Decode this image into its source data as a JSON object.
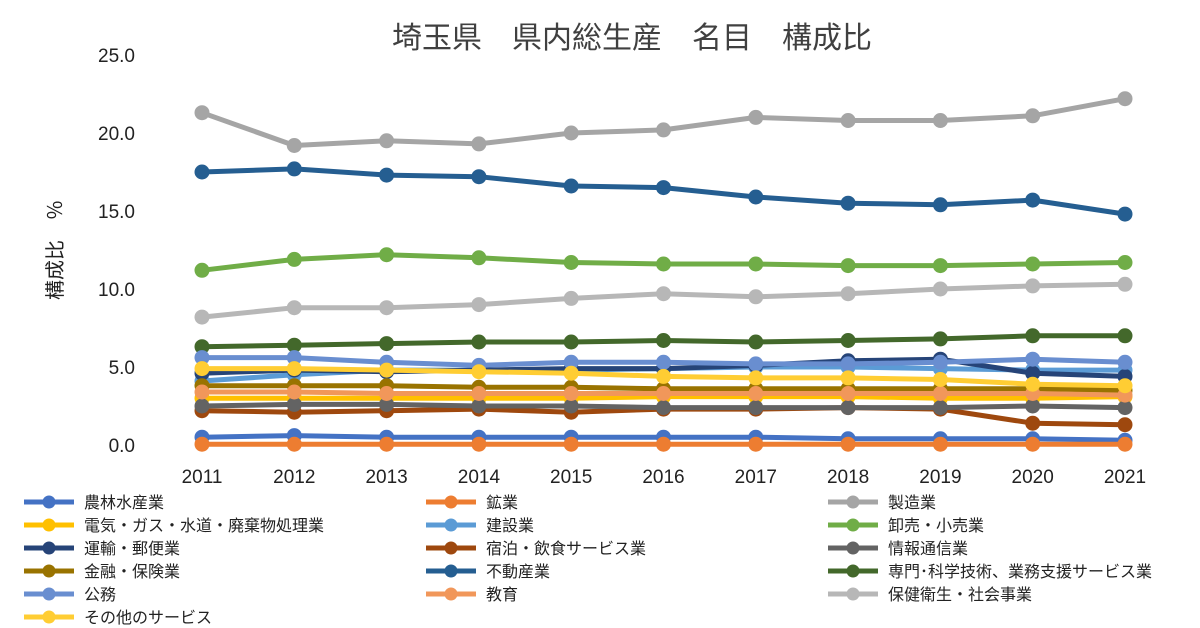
{
  "chart_data": {
    "type": "line",
    "title": "埼玉県　県内総生産　名目　構成比",
    "xlabel": "",
    "ylabel": "構成比　％",
    "ylim": [
      0,
      25
    ],
    "yticks": [
      "0.0",
      "5.0",
      "10.0",
      "15.0",
      "20.0",
      "25.0"
    ],
    "grid": false,
    "legend_position": "bottom",
    "categories": [
      "2011",
      "2012",
      "2013",
      "2014",
      "2015",
      "2016",
      "2017",
      "2018",
      "2019",
      "2020",
      "2021"
    ],
    "series": [
      {
        "name": "農林水産業",
        "color": "#4472C4",
        "values": [
          0.5,
          0.6,
          0.5,
          0.5,
          0.5,
          0.5,
          0.5,
          0.4,
          0.4,
          0.4,
          0.3
        ]
      },
      {
        "name": "鉱業",
        "color": "#ED7D31",
        "values": [
          0.05,
          0.05,
          0.05,
          0.05,
          0.05,
          0.05,
          0.05,
          0.05,
          0.05,
          0.05,
          0.05
        ]
      },
      {
        "name": "製造業",
        "color": "#A5A5A5",
        "values": [
          21.3,
          19.2,
          19.5,
          19.3,
          20.0,
          20.2,
          21.0,
          20.8,
          20.8,
          21.1,
          22.2
        ]
      },
      {
        "name": "電気・ガス・水道・廃棄物処理業",
        "color": "#FFC000",
        "values": [
          3.0,
          3.0,
          3.0,
          3.0,
          3.0,
          3.1,
          3.1,
          3.1,
          3.0,
          3.0,
          3.1
        ]
      },
      {
        "name": "建設業",
        "color": "#5B9BD5",
        "values": [
          4.1,
          4.5,
          4.8,
          4.8,
          4.8,
          4.9,
          5.0,
          5.0,
          4.9,
          4.8,
          4.8
        ]
      },
      {
        "name": "卸売・小売業",
        "color": "#70AD47",
        "values": [
          11.2,
          11.9,
          12.2,
          12.0,
          11.7,
          11.6,
          11.6,
          11.5,
          11.5,
          11.6,
          11.7
        ]
      },
      {
        "name": "運輸・郵便業",
        "color": "#264478",
        "values": [
          4.6,
          4.8,
          4.7,
          4.8,
          4.9,
          4.9,
          5.1,
          5.4,
          5.5,
          4.6,
          4.4
        ]
      },
      {
        "name": "宿泊・飲食サービス業",
        "color": "#9E480E",
        "values": [
          2.2,
          2.1,
          2.2,
          2.3,
          2.1,
          2.3,
          2.3,
          2.4,
          2.3,
          1.4,
          1.3
        ]
      },
      {
        "name": "情報通信業",
        "color": "#636363",
        "values": [
          2.5,
          2.6,
          2.6,
          2.5,
          2.5,
          2.4,
          2.4,
          2.4,
          2.4,
          2.5,
          2.4
        ]
      },
      {
        "name": "金融・保険業",
        "color": "#997300",
        "values": [
          3.8,
          3.8,
          3.8,
          3.7,
          3.7,
          3.6,
          3.6,
          3.6,
          3.6,
          3.6,
          3.5
        ]
      },
      {
        "name": "不動産業",
        "color": "#255E91",
        "values": [
          17.5,
          17.7,
          17.3,
          17.2,
          16.6,
          16.5,
          15.9,
          15.5,
          15.4,
          15.7,
          14.8
        ]
      },
      {
        "name": "専門･科学技術、業務支援サービス業",
        "color": "#43682B",
        "values": [
          6.3,
          6.4,
          6.5,
          6.6,
          6.6,
          6.7,
          6.6,
          6.7,
          6.8,
          7.0,
          7.0
        ]
      },
      {
        "name": "公務",
        "color": "#698ED0",
        "values": [
          5.6,
          5.6,
          5.3,
          5.1,
          5.3,
          5.3,
          5.2,
          5.2,
          5.3,
          5.5,
          5.3
        ]
      },
      {
        "name": "教育",
        "color": "#F1975A",
        "values": [
          3.4,
          3.4,
          3.3,
          3.3,
          3.3,
          3.3,
          3.3,
          3.3,
          3.3,
          3.3,
          3.2
        ]
      },
      {
        "name": "保健衛生・社会事業",
        "color": "#B7B7B7",
        "values": [
          8.2,
          8.8,
          8.8,
          9.0,
          9.4,
          9.7,
          9.5,
          9.7,
          10.0,
          10.2,
          10.3
        ]
      },
      {
        "name": "その他のサービス",
        "color": "#FFCD33",
        "values": [
          4.9,
          4.9,
          4.8,
          4.7,
          4.6,
          4.4,
          4.3,
          4.3,
          4.2,
          3.9,
          3.8
        ]
      }
    ]
  }
}
